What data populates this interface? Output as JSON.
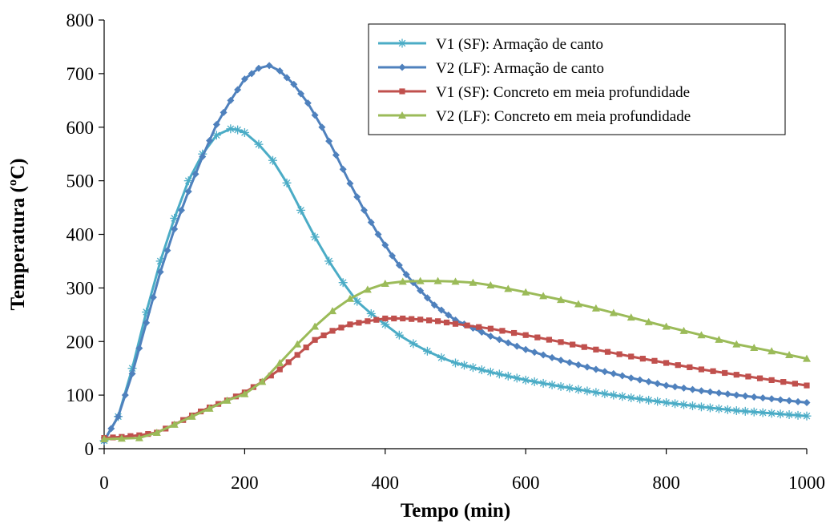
{
  "chart_data": {
    "type": "line",
    "title": "",
    "xlabel": "Tempo (min)",
    "ylabel": "Temperatura (ºC)",
    "xlim": [
      0,
      1000
    ],
    "ylim": [
      0,
      800
    ],
    "xticks": [
      0,
      200,
      400,
      600,
      800,
      1000
    ],
    "yticks": [
      0,
      100,
      200,
      300,
      400,
      500,
      600,
      700,
      800
    ],
    "grid": false,
    "legend_position": "top-right",
    "series": [
      {
        "name": "V1 (SF): Armação de canto",
        "color": "#4BACC6",
        "marker": "asterisk",
        "x": [
          0,
          20,
          40,
          60,
          80,
          100,
          120,
          140,
          160,
          180,
          190,
          200,
          220,
          240,
          260,
          280,
          300,
          320,
          340,
          360,
          380,
          400,
          420,
          440,
          460,
          480,
          500,
          550,
          600,
          650,
          700,
          750,
          800,
          850,
          900,
          950,
          1000
        ],
        "y": [
          15,
          60,
          150,
          255,
          350,
          430,
          500,
          550,
          585,
          597,
          595,
          590,
          568,
          538,
          496,
          445,
          395,
          350,
          310,
          275,
          252,
          232,
          212,
          196,
          182,
          170,
          160,
          143,
          128,
          116,
          105,
          95,
          86,
          78,
          71,
          66,
          61
        ]
      },
      {
        "name": "V2 (LF): Armação de canto",
        "color": "#4F81BD",
        "marker": "diamond",
        "x": [
          0,
          20,
          40,
          60,
          80,
          100,
          120,
          140,
          160,
          180,
          200,
          220,
          235,
          250,
          270,
          290,
          310,
          330,
          350,
          370,
          390,
          410,
          430,
          450,
          470,
          500,
          550,
          600,
          650,
          700,
          750,
          800,
          850,
          900,
          950,
          1000
        ],
        "y": [
          15,
          60,
          140,
          235,
          330,
          410,
          480,
          545,
          605,
          650,
          690,
          710,
          715,
          705,
          680,
          645,
          600,
          548,
          495,
          445,
          400,
          360,
          325,
          295,
          268,
          240,
          210,
          185,
          165,
          148,
          132,
          118,
          108,
          100,
          93,
          86
        ]
      },
      {
        "name": "V1 (SF): Concreto em meia profundidade",
        "color": "#C0504D",
        "marker": "square",
        "x": [
          0,
          25,
          50,
          75,
          100,
          125,
          150,
          175,
          200,
          225,
          250,
          275,
          300,
          325,
          350,
          375,
          400,
          425,
          450,
          475,
          500,
          550,
          600,
          650,
          700,
          750,
          800,
          850,
          900,
          950,
          1000
        ],
        "y": [
          20,
          22,
          25,
          30,
          45,
          62,
          77,
          90,
          105,
          125,
          148,
          175,
          203,
          220,
          232,
          238,
          243,
          243,
          241,
          238,
          233,
          224,
          212,
          199,
          185,
          172,
          160,
          148,
          138,
          128,
          118
        ]
      },
      {
        "name": "V2 (LF): Concreto em meia profundidade",
        "color": "#9BBB59",
        "marker": "triangle",
        "x": [
          0,
          50,
          75,
          100,
          125,
          150,
          175,
          200,
          225,
          250,
          275,
          300,
          325,
          350,
          375,
          400,
          425,
          450,
          475,
          500,
          525,
          550,
          600,
          650,
          700,
          750,
          800,
          850,
          900,
          950,
          1000
        ],
        "y": [
          18,
          20,
          30,
          45,
          60,
          75,
          90,
          102,
          125,
          160,
          195,
          228,
          257,
          280,
          297,
          308,
          312,
          313,
          313,
          312,
          310,
          305,
          292,
          278,
          262,
          245,
          228,
          212,
          195,
          182,
          168
        ]
      }
    ]
  }
}
